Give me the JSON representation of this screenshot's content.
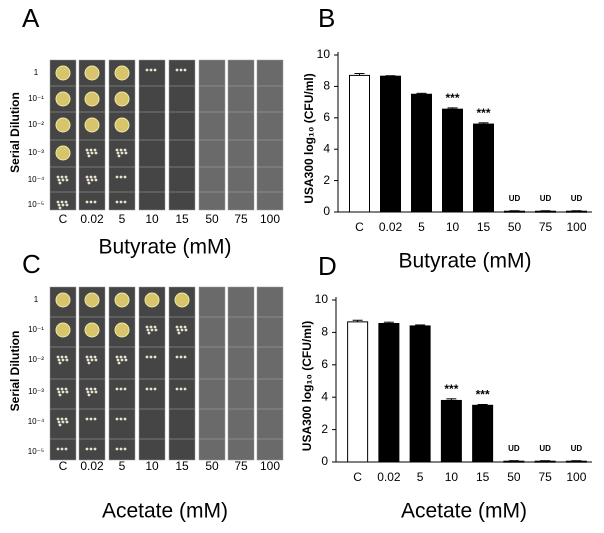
{
  "plates": [
    {
      "panel": "A",
      "y_label": "Serial Dilution",
      "row_labels": [
        "1",
        "10⁻¹",
        "10⁻²",
        "10⁻³",
        "10⁻⁴",
        "10⁻⁵"
      ],
      "column_labels": [
        "C",
        "0.02",
        "5",
        "10",
        "15",
        "50",
        "75",
        "100"
      ],
      "x_label": "Butyrate (mM)"
    },
    {
      "panel": "C",
      "y_label": "Serial Dilution",
      "row_labels": [
        "1",
        "10⁻¹",
        "10⁻²",
        "10⁻³",
        "10⁻⁴",
        "10⁻⁵"
      ],
      "column_labels": [
        "C",
        "0.02",
        "5",
        "10",
        "15",
        "50",
        "75",
        "100"
      ],
      "x_label": "Acetate (mM)"
    }
  ],
  "chart_data": [
    {
      "type": "bar",
      "panel": "B",
      "ylabel": "USA300 log₁₀ (CFU/ml)",
      "xlabel": "Butyrate (mM)",
      "categories": [
        "C",
        "0.02",
        "5",
        "10",
        "15",
        "50",
        "75",
        "100"
      ],
      "values": [
        8.7,
        8.65,
        7.5,
        6.55,
        5.6,
        0.05,
        0.05,
        0.05
      ],
      "errors": [
        0.12,
        0.03,
        0.06,
        0.08,
        0.08,
        0.03,
        0.03,
        0.03
      ],
      "colors": [
        "#ffffff",
        "#000000",
        "#000000",
        "#000000",
        "#000000",
        "#000000",
        "#000000",
        "#000000"
      ],
      "annotations": [
        {
          "category": "10",
          "text": "***"
        },
        {
          "category": "15",
          "text": "***"
        },
        {
          "category": "50",
          "text": "UD"
        },
        {
          "category": "75",
          "text": "UD"
        },
        {
          "category": "100",
          "text": "UD"
        }
      ],
      "ylim": [
        0,
        10
      ],
      "yticks": [
        0,
        2,
        4,
        6,
        8,
        10
      ],
      "grid": false
    },
    {
      "type": "bar",
      "panel": "D",
      "ylabel": "USA300 log₁₀ (CFU/ml)",
      "xlabel": "Acetate (mM)",
      "categories": [
        "C",
        "0.02",
        "5",
        "10",
        "15",
        "50",
        "75",
        "100"
      ],
      "values": [
        8.65,
        8.55,
        8.4,
        3.8,
        3.5,
        0.05,
        0.05,
        0.05
      ],
      "errors": [
        0.1,
        0.08,
        0.06,
        0.1,
        0.05,
        0.03,
        0.03,
        0.03
      ],
      "colors": [
        "#ffffff",
        "#000000",
        "#000000",
        "#000000",
        "#000000",
        "#000000",
        "#000000",
        "#000000"
      ],
      "annotations": [
        {
          "category": "10",
          "text": "***"
        },
        {
          "category": "15",
          "text": "***"
        },
        {
          "category": "50",
          "text": "UD"
        },
        {
          "category": "75",
          "text": "UD"
        },
        {
          "category": "100",
          "text": "UD"
        }
      ],
      "ylim": [
        0,
        10
      ],
      "yticks": [
        0,
        2,
        4,
        6,
        8,
        10
      ],
      "grid": false
    }
  ]
}
